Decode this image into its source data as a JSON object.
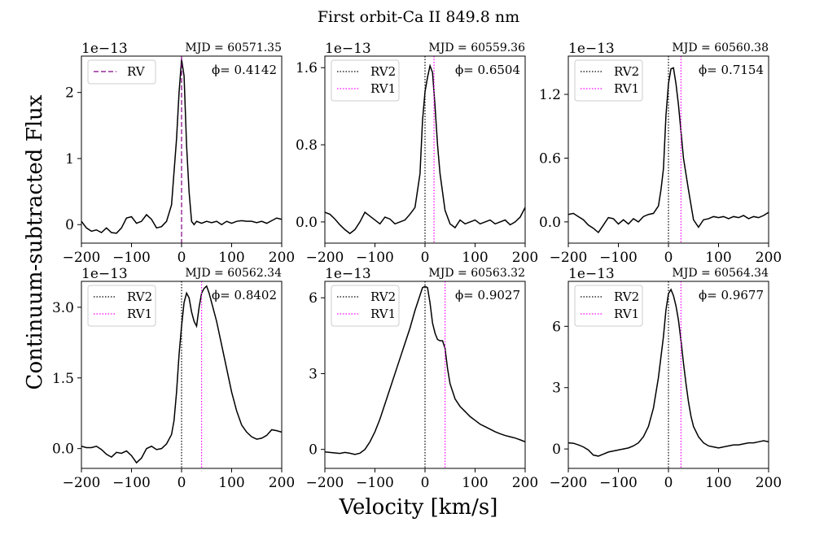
{
  "figure": {
    "suptitle": "First orbit-Ca II 849.8 nm",
    "xlabel": "Velocity [km/s]",
    "ylabel": "Continuum-subtracted Flux",
    "line_color": "#000000",
    "rv_single_color": "#800080",
    "rv1_color": "#ff00ff",
    "rv2_color": "#000000"
  },
  "chart_data": [
    {
      "type": "line",
      "title": "MJD = 60571.35",
      "phase": "ϕ= 0.4142",
      "offset": "1e−13",
      "xlim": [
        -200,
        200
      ],
      "ylim": [
        -0.28,
        2.55
      ],
      "xticks": [
        -200,
        -100,
        0,
        100,
        200
      ],
      "yticks": [
        0,
        1,
        2
      ],
      "ytick_labels": [
        "0",
        "1",
        "2"
      ],
      "legend": [
        {
          "label": "RV",
          "style": "dashed",
          "color": "#800080"
        }
      ],
      "vlines": [
        {
          "x": 0,
          "style": "dashed",
          "color": "#800080"
        }
      ],
      "x": [
        -200,
        -190,
        -180,
        -170,
        -160,
        -150,
        -140,
        -130,
        -120,
        -110,
        -100,
        -90,
        -80,
        -70,
        -60,
        -50,
        -40,
        -30,
        -20,
        -10,
        -5,
        0,
        5,
        10,
        15,
        20,
        25,
        30,
        40,
        50,
        60,
        70,
        80,
        90,
        100,
        110,
        120,
        130,
        140,
        150,
        160,
        170,
        180,
        190,
        200
      ],
      "y": [
        0.05,
        -0.05,
        -0.1,
        -0.08,
        -0.12,
        -0.05,
        -0.12,
        -0.13,
        -0.05,
        0.1,
        0.12,
        0.02,
        0.05,
        0.15,
        0.08,
        -0.05,
        -0.03,
        0.05,
        0.3,
        1.3,
        2.0,
        2.5,
        2.25,
        1.2,
        0.5,
        0.05,
        0.0,
        0.05,
        0.02,
        0.05,
        0.03,
        0.05,
        0.0,
        0.05,
        0.02,
        0.05,
        0.06,
        0.05,
        0.05,
        0.03,
        0.05,
        0.02,
        0.06,
        0.1,
        0.08
      ]
    },
    {
      "type": "line",
      "title": "MJD = 60559.36",
      "phase": "ϕ= 0.6504",
      "offset": "1e−13",
      "xlim": [
        -200,
        200
      ],
      "ylim": [
        -0.22,
        1.72
      ],
      "xticks": [
        -200,
        -100,
        0,
        100,
        200
      ],
      "yticks": [
        0,
        0.8,
        1.6
      ],
      "ytick_labels": [
        "0.0",
        "0.8",
        "1.6"
      ],
      "legend": [
        {
          "label": "RV2",
          "style": "dotted",
          "color": "#000000"
        },
        {
          "label": "RV1",
          "style": "dotted",
          "color": "#ff00ff"
        }
      ],
      "vlines": [
        {
          "x": 0,
          "style": "dotted",
          "color": "#000000"
        },
        {
          "x": 18,
          "style": "dotted",
          "color": "#ff00ff"
        }
      ],
      "x": [
        -200,
        -190,
        -180,
        -170,
        -160,
        -150,
        -140,
        -130,
        -120,
        -110,
        -100,
        -90,
        -80,
        -70,
        -60,
        -50,
        -40,
        -30,
        -20,
        -10,
        -5,
        0,
        5,
        10,
        15,
        20,
        25,
        30,
        40,
        50,
        60,
        70,
        80,
        90,
        100,
        110,
        120,
        130,
        140,
        150,
        160,
        170,
        180,
        190,
        200
      ],
      "y": [
        0.1,
        0.08,
        0.03,
        -0.03,
        -0.08,
        -0.12,
        -0.08,
        0.0,
        0.1,
        0.06,
        0.02,
        -0.02,
        0.05,
        0.03,
        -0.02,
        0.0,
        0.02,
        0.08,
        0.15,
        0.5,
        1.05,
        1.35,
        1.5,
        1.62,
        1.55,
        1.2,
        0.8,
        0.5,
        0.12,
        -0.02,
        -0.06,
        0.02,
        -0.02,
        0.0,
        0.02,
        -0.02,
        0.0,
        0.02,
        -0.02,
        0.0,
        0.02,
        -0.03,
        0.0,
        0.05,
        0.15
      ]
    },
    {
      "type": "line",
      "title": "MJD = 60560.38",
      "phase": "ϕ= 0.7154",
      "offset": "1e−13",
      "xlim": [
        -200,
        200
      ],
      "ylim": [
        -0.2,
        1.56
      ],
      "xticks": [
        -200,
        -100,
        0,
        100,
        200
      ],
      "yticks": [
        0,
        0.6,
        1.2
      ],
      "ytick_labels": [
        "0.0",
        "0.6",
        "1.2"
      ],
      "legend": [
        {
          "label": "RV2",
          "style": "dotted",
          "color": "#000000"
        },
        {
          "label": "RV1",
          "style": "dotted",
          "color": "#ff00ff"
        }
      ],
      "vlines": [
        {
          "x": 0,
          "style": "dotted",
          "color": "#000000"
        },
        {
          "x": 25,
          "style": "dotted",
          "color": "#ff00ff"
        }
      ],
      "x": [
        -200,
        -190,
        -180,
        -170,
        -160,
        -150,
        -140,
        -130,
        -120,
        -110,
        -100,
        -90,
        -80,
        -70,
        -60,
        -50,
        -40,
        -30,
        -20,
        -15,
        -10,
        -5,
        0,
        5,
        10,
        15,
        20,
        25,
        30,
        40,
        50,
        60,
        70,
        80,
        90,
        100,
        110,
        120,
        130,
        140,
        150,
        160,
        170,
        180,
        190,
        200
      ],
      "y": [
        0.07,
        0.08,
        0.05,
        0.02,
        -0.03,
        -0.06,
        -0.1,
        -0.03,
        0.04,
        0.03,
        -0.02,
        0.02,
        -0.02,
        0.03,
        0.0,
        0.05,
        0.07,
        0.08,
        0.15,
        0.3,
        0.5,
        1.0,
        1.3,
        1.44,
        1.45,
        1.3,
        1.1,
        0.85,
        0.6,
        0.3,
        0.02,
        -0.05,
        0.02,
        0.03,
        0.05,
        0.04,
        0.05,
        0.03,
        0.05,
        0.04,
        0.06,
        0.03,
        0.05,
        0.04,
        0.06,
        0.09
      ]
    },
    {
      "type": "line",
      "title": "MJD = 60562.34",
      "phase": "ϕ= 0.8402",
      "offset": "1e−13",
      "xlim": [
        -200,
        200
      ],
      "ylim": [
        -0.42,
        3.55
      ],
      "xticks": [
        -200,
        -100,
        0,
        100,
        200
      ],
      "yticks": [
        0,
        1.5,
        3.0
      ],
      "ytick_labels": [
        "0.0",
        "1.5",
        "3.0"
      ],
      "legend": [
        {
          "label": "RV2",
          "style": "dotted",
          "color": "#000000"
        },
        {
          "label": "RV1",
          "style": "dotted",
          "color": "#ff00ff"
        }
      ],
      "vlines": [
        {
          "x": 0,
          "style": "dotted",
          "color": "#000000"
        },
        {
          "x": 40,
          "style": "dotted",
          "color": "#ff00ff"
        }
      ],
      "x": [
        -200,
        -190,
        -180,
        -170,
        -160,
        -150,
        -140,
        -130,
        -120,
        -110,
        -100,
        -90,
        -80,
        -70,
        -60,
        -50,
        -40,
        -30,
        -20,
        -15,
        -10,
        -5,
        0,
        5,
        10,
        15,
        20,
        25,
        30,
        35,
        40,
        45,
        50,
        55,
        60,
        70,
        80,
        90,
        100,
        110,
        120,
        130,
        140,
        150,
        160,
        170,
        180,
        190,
        200
      ],
      "y": [
        0.05,
        0.02,
        0.02,
        0.05,
        -0.02,
        -0.12,
        -0.18,
        -0.08,
        -0.1,
        -0.05,
        -0.15,
        -0.3,
        -0.2,
        0.0,
        0.05,
        -0.02,
        0.0,
        0.1,
        0.3,
        0.6,
        1.2,
        2.0,
        2.6,
        3.1,
        3.3,
        3.2,
        2.9,
        2.7,
        2.6,
        3.0,
        3.3,
        3.4,
        3.45,
        3.3,
        3.1,
        2.7,
        2.2,
        1.7,
        1.2,
        0.8,
        0.5,
        0.35,
        0.25,
        0.2,
        0.22,
        0.28,
        0.4,
        0.38,
        0.35
      ]
    },
    {
      "type": "line",
      "title": "MJD = 60563.32",
      "phase": "ϕ= 0.9027",
      "offset": "1e−13",
      "xlim": [
        -200,
        200
      ],
      "ylim": [
        -0.75,
        6.65
      ],
      "xticks": [
        -200,
        -100,
        0,
        100,
        200
      ],
      "yticks": [
        0,
        3,
        6
      ],
      "ytick_labels": [
        "0",
        "3",
        "6"
      ],
      "legend": [
        {
          "label": "RV2",
          "style": "dotted",
          "color": "#000000"
        },
        {
          "label": "RV1",
          "style": "dotted",
          "color": "#ff00ff"
        }
      ],
      "vlines": [
        {
          "x": 0,
          "style": "dotted",
          "color": "#000000"
        },
        {
          "x": 40,
          "style": "dotted",
          "color": "#ff00ff"
        }
      ],
      "x": [
        -200,
        -190,
        -180,
        -170,
        -160,
        -150,
        -140,
        -130,
        -120,
        -110,
        -100,
        -90,
        -80,
        -70,
        -60,
        -50,
        -40,
        -30,
        -20,
        -10,
        -5,
        0,
        5,
        10,
        15,
        20,
        25,
        30,
        35,
        40,
        45,
        50,
        60,
        70,
        80,
        90,
        100,
        110,
        120,
        130,
        140,
        150,
        160,
        170,
        180,
        190,
        200
      ],
      "y": [
        -0.1,
        -0.12,
        -0.14,
        -0.16,
        -0.12,
        -0.15,
        -0.2,
        -0.15,
        0.0,
        0.3,
        0.7,
        1.2,
        1.8,
        2.4,
        3.0,
        3.6,
        4.2,
        4.8,
        5.5,
        6.1,
        6.4,
        6.45,
        6.4,
        5.8,
        5.0,
        4.6,
        4.35,
        4.3,
        4.3,
        4.0,
        3.2,
        2.6,
        2.0,
        1.7,
        1.5,
        1.3,
        1.15,
        1.0,
        0.9,
        0.8,
        0.7,
        0.62,
        0.55,
        0.5,
        0.45,
        0.38,
        0.3
      ]
    },
    {
      "type": "line",
      "title": "MJD = 60564.34",
      "phase": "ϕ= 0.9677",
      "offset": "1e−13",
      "xlim": [
        -200,
        200
      ],
      "ylim": [
        -0.95,
        8.2
      ],
      "xticks": [
        -200,
        -100,
        0,
        100,
        200
      ],
      "yticks": [
        0,
        3,
        6
      ],
      "ytick_labels": [
        "0",
        "3",
        "6"
      ],
      "legend": [
        {
          "label": "RV2",
          "style": "dotted",
          "color": "#000000"
        },
        {
          "label": "RV1",
          "style": "dotted",
          "color": "#ff00ff"
        }
      ],
      "vlines": [
        {
          "x": 0,
          "style": "dotted",
          "color": "#000000"
        },
        {
          "x": 25,
          "style": "dotted",
          "color": "#ff00ff"
        }
      ],
      "x": [
        -200,
        -190,
        -180,
        -170,
        -160,
        -150,
        -140,
        -130,
        -120,
        -110,
        -100,
        -90,
        -80,
        -70,
        -60,
        -50,
        -40,
        -30,
        -20,
        -10,
        -5,
        0,
        5,
        10,
        15,
        20,
        25,
        30,
        35,
        40,
        45,
        50,
        60,
        70,
        80,
        90,
        100,
        110,
        120,
        130,
        140,
        150,
        160,
        170,
        180,
        190,
        200
      ],
      "y": [
        0.3,
        0.28,
        0.2,
        0.1,
        -0.05,
        -0.3,
        -0.35,
        -0.25,
        -0.15,
        -0.1,
        -0.05,
        0.0,
        0.05,
        0.15,
        0.3,
        0.6,
        1.1,
        2.0,
        3.5,
        5.5,
        6.8,
        7.6,
        7.8,
        7.5,
        7.0,
        6.3,
        5.3,
        4.2,
        3.2,
        2.3,
        1.6,
        1.1,
        0.6,
        0.3,
        0.15,
        0.1,
        0.05,
        0.1,
        0.15,
        0.2,
        0.2,
        0.25,
        0.3,
        0.3,
        0.35,
        0.4,
        0.35
      ]
    }
  ]
}
